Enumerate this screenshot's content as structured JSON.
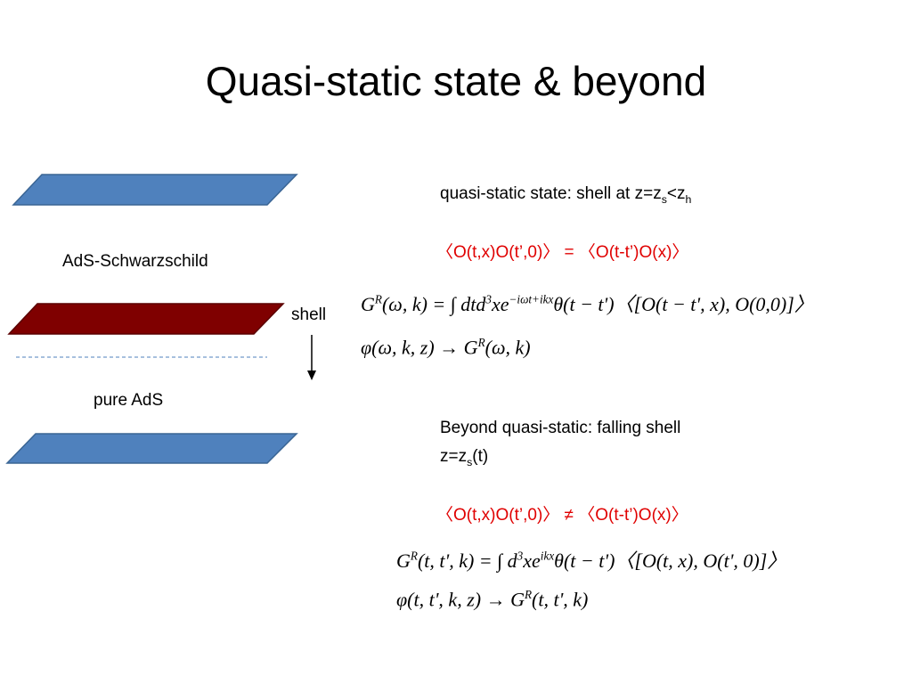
{
  "title": "Quasi-static state & beyond",
  "diagram": {
    "top_label": "AdS-Schwarzschild",
    "shell_label": "shell",
    "bottom_label": "pure AdS"
  },
  "sections": [
    {
      "heading": [
        [
          {
            "base": "quasi-static state: shell at z=z"
          },
          {
            "sub": "s"
          },
          {
            "base": "<z"
          },
          {
            "sub": "h"
          }
        ]
      ],
      "relation": "〈O(t,x)O(t’,0)〉 = 〈O(t-t’)O(x)〉",
      "equations": [
        [
          {
            "base": "G"
          },
          {
            "sup": "R"
          },
          {
            "base": "(ω, k) = ∫ dtd"
          },
          {
            "sup": "3"
          },
          {
            "base": "xe"
          },
          {
            "sup": "−iωt+ikx"
          },
          {
            "base": "θ(t − t')〈[O(t − t', x), O(0,0)]〉"
          }
        ],
        [
          {
            "base": "φ(ω, k, z) → G"
          },
          {
            "sup": "R"
          },
          {
            "base": "(ω, k)"
          }
        ]
      ]
    },
    {
      "heading": [
        [
          {
            "base": "Beyond quasi-static: falling shell"
          }
        ],
        [
          {
            "base": "z=z"
          },
          {
            "sub": "s"
          },
          {
            "base": "(t)"
          }
        ]
      ],
      "relation": "〈O(t,x)O(t’,0)〉 ≠ 〈O(t-t’)O(x)〉",
      "equations": [
        [
          {
            "base": "G"
          },
          {
            "sup": "R"
          },
          {
            "base": "(t, t', k) = ∫ d"
          },
          {
            "sup": "3"
          },
          {
            "base": "xe"
          },
          {
            "sup": "ikx"
          },
          {
            "base": "θ(t − t')〈[O(t, x), O(t', 0)]〉"
          }
        ],
        [
          {
            "base": "φ(t, t', k, z) → G"
          },
          {
            "sup": "R"
          },
          {
            "base": "(t, t', k)"
          }
        ]
      ]
    }
  ]
}
